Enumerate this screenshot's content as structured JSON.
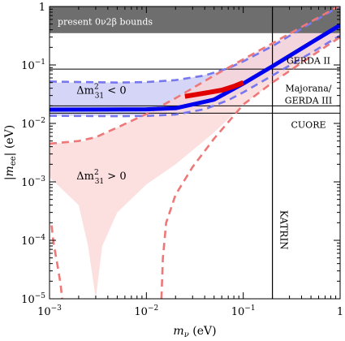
{
  "chart_data": {
    "type": "area",
    "xscale": "log",
    "yscale": "log",
    "xlim": [
      0.001,
      1
    ],
    "ylim": [
      1e-05,
      1
    ],
    "xlabel_main": "m",
    "xlabel_sub": "ν",
    "xlabel_unit": " (eV)",
    "ylabel_pre": "|",
    "ylabel_main": "m",
    "ylabel_sub": "ee",
    "ylabel_post": "| (eV)",
    "x_ticks": [
      {
        "value": 0.001,
        "base": "10",
        "exp": "−3"
      },
      {
        "value": 0.01,
        "base": "10",
        "exp": "−2"
      },
      {
        "value": 0.1,
        "base": "10",
        "exp": "−1"
      },
      {
        "value": 1,
        "base": "1",
        "exp": ""
      }
    ],
    "y_ticks": [
      {
        "value": 1,
        "base": "1",
        "exp": ""
      },
      {
        "value": 0.1,
        "base": "10",
        "exp": "−1"
      },
      {
        "value": 0.01,
        "base": "10",
        "exp": "−2"
      },
      {
        "value": 0.001,
        "base": "10",
        "exp": "−3"
      },
      {
        "value": 0.0001,
        "base": "10",
        "exp": "−4"
      },
      {
        "value": 1e-05,
        "base": "10",
        "exp": "−5"
      }
    ],
    "bounds_region": {
      "label": "present 0ν2β bounds",
      "y_from": 0.35,
      "y_to": 1,
      "color": "#6e6e6e"
    },
    "horizontal_lines": [
      {
        "label": "GERDA II",
        "y": 0.085
      },
      {
        "label": "Majorana/GERDA III",
        "y": 0.02
      },
      {
        "label": "CUORE",
        "y": 0.015
      }
    ],
    "horizontal_line_labels": [
      {
        "lines": [
          "GERDA II"
        ],
        "y": 0.12
      },
      {
        "lines": [
          "Majorana/",
          "GERDA III"
        ],
        "y": 0.04,
        "y2": 0.025
      },
      {
        "lines": [
          "CUORE"
        ],
        "y": 0.0095
      }
    ],
    "vertical_lines": [
      {
        "label": "KATRIN",
        "x": 0.2
      }
    ],
    "region_labels": [
      {
        "text_pre": "Δm",
        "sup": "2",
        "sub": "31",
        "text_post": " < 0",
        "x": 0.0019,
        "y": 0.032
      },
      {
        "text_pre": "Δm",
        "sup": "2",
        "sub": "31",
        "text_post": " > 0",
        "x": 0.0019,
        "y": 0.0011
      }
    ],
    "series": [
      {
        "name": "Δm²31 < 0",
        "kind": "band",
        "x": [
          0.001,
          0.003,
          0.01,
          0.02,
          0.05,
          0.1,
          0.2,
          0.5,
          1
        ],
        "upper": [
          0.05,
          0.05,
          0.051,
          0.054,
          0.072,
          0.12,
          0.21,
          0.52,
          1.02
        ],
        "lower": [
          0.0135,
          0.0135,
          0.0138,
          0.0148,
          0.0205,
          0.035,
          0.066,
          0.16,
          0.32
        ],
        "color": "#c7c7f5"
      },
      {
        "name": "Δm²31 > 0",
        "kind": "band",
        "x": [
          0.001,
          0.002,
          0.0025,
          0.003,
          0.0035,
          0.005,
          0.01,
          0.02,
          0.05,
          0.1,
          0.2,
          0.5,
          1
        ],
        "upper": [
          0.0045,
          0.0048,
          0.0052,
          0.0058,
          0.0064,
          0.0085,
          0.0145,
          0.027,
          0.066,
          0.125,
          0.235,
          0.55,
          1.05
        ],
        "lower": [
          0.0012,
          0.0004,
          8e-05,
          1e-05,
          8e-05,
          0.0003,
          0.0009,
          0.002,
          0.007,
          0.021,
          0.05,
          0.14,
          0.3
        ],
        "color": "#fbd4d4"
      },
      {
        "name": "inverted best fit",
        "kind": "line",
        "x": [
          0.001,
          0.01,
          0.02,
          0.05,
          0.1,
          0.2,
          0.5,
          1
        ],
        "y": [
          0.0172,
          0.0174,
          0.0182,
          0.0255,
          0.048,
          0.095,
          0.24,
          0.48
        ],
        "color": "#0000ee",
        "width": 5
      },
      {
        "name": "normal best fit",
        "kind": "line",
        "x": [
          0.025,
          0.04,
          0.06,
          0.08,
          0.1
        ],
        "y": [
          0.029,
          0.033,
          0.037,
          0.043,
          0.05
        ],
        "color": "#e00000",
        "width": 6
      },
      {
        "name": "inverted upper edge",
        "kind": "dashed",
        "x": [
          0.001,
          0.005,
          0.01,
          0.02,
          0.04,
          0.07,
          0.1,
          0.2,
          0.5,
          1
        ],
        "y": [
          0.052,
          0.05,
          0.051,
          0.055,
          0.066,
          0.088,
          0.115,
          0.21,
          0.52,
          1.02
        ],
        "color": "#7777ee"
      },
      {
        "name": "inverted lower edge",
        "kind": "dashed",
        "x": [
          0.001,
          0.005,
          0.01,
          0.02,
          0.04,
          0.07,
          0.1,
          0.2,
          0.5,
          1
        ],
        "y": [
          0.0135,
          0.0133,
          0.0134,
          0.0142,
          0.0175,
          0.025,
          0.034,
          0.066,
          0.16,
          0.32
        ],
        "color": "#7777ee"
      },
      {
        "name": "normal upper edge",
        "kind": "dashed",
        "x": [
          0.001,
          0.002,
          0.003,
          0.005,
          0.01,
          0.02,
          0.05,
          0.1,
          0.2,
          0.5,
          1
        ],
        "y": [
          0.0045,
          0.005,
          0.0058,
          0.0085,
          0.0145,
          0.027,
          0.066,
          0.125,
          0.235,
          0.55,
          1.05
        ],
        "color": "#ee7777"
      },
      {
        "name": "normal lower edge (left)",
        "kind": "dashed",
        "x": [
          0.00105,
          0.0011,
          0.0012,
          0.0013,
          0.00135
        ],
        "y": [
          0.00018,
          9e-05,
          4e-05,
          1.8e-05,
          1e-05
        ],
        "color": "#ee7777"
      },
      {
        "name": "normal lower edge (right)",
        "kind": "dashed",
        "x": [
          0.0143,
          0.0148,
          0.016,
          0.02,
          0.03,
          0.05,
          0.1,
          0.2,
          0.5,
          1
        ],
        "y": [
          1e-05,
          5e-05,
          0.0002,
          0.0006,
          0.0018,
          0.0055,
          0.021,
          0.05,
          0.14,
          0.3
        ],
        "color": "#ee7777"
      }
    ]
  }
}
